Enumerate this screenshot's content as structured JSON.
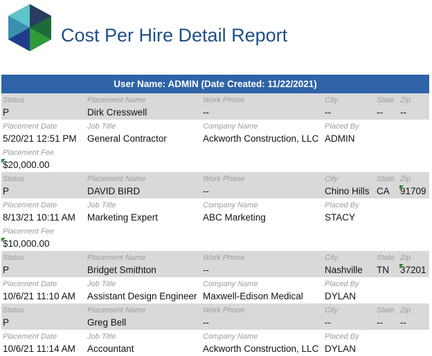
{
  "report": {
    "title": "Cost Per Hire Detail Report",
    "user_line": "User Name: ADMIN (Date Created: 11/22/2021)",
    "brand_colors": {
      "title": "#1f4e87",
      "bar": "#2e63a8",
      "row_gray": "#d9d9d9",
      "flag": "#1a8a2a"
    }
  },
  "labels": {
    "status": "Status",
    "placement_name": "Placement Name",
    "work_phone": "Work Phone",
    "city": "City",
    "state": "State",
    "zip": "Zip",
    "placement_date": "Placement Date",
    "job_title": "Job Title",
    "company_name": "Company Name",
    "placed_by": "Placed By",
    "placement_fee": "Placement Fee"
  },
  "records": [
    {
      "status": "P",
      "name": "Dirk Cresswell",
      "phone": "--",
      "city": "--",
      "state": "--",
      "zip": "--",
      "date": "5/20/21 12:51 PM",
      "job": "General Contractor",
      "company": "Ackworth Construction, LLC",
      "placed_by": "ADMIN",
      "fee": "$20,000.00"
    },
    {
      "status": "P",
      "name": "DAVID BIRD",
      "phone": "--",
      "city": "Chino Hills",
      "state": "CA",
      "zip": "91709",
      "date": "8/13/21 10:11 AM",
      "job": "Marketing Expert",
      "company": "ABC Marketing",
      "placed_by": "STACY",
      "fee": "$10,000.00"
    },
    {
      "status": "P",
      "name": "Bridget Smithton",
      "phone": "--",
      "city": "Nashville",
      "state": "TN",
      "zip": "37201",
      "date": "10/6/21 11:10 AM",
      "job": "Assistant Design Engineer",
      "company": "Maxwell-Edison Medical",
      "placed_by": "DYLAN"
    },
    {
      "status": "P",
      "name": "Greg Bell",
      "phone": "--",
      "city": "--",
      "state": "--",
      "zip": "--",
      "date": "10/6/21 11:14 AM",
      "job": "Accountant",
      "company": "Ackworth Construction, LLC",
      "placed_by": "DYLAN"
    }
  ]
}
